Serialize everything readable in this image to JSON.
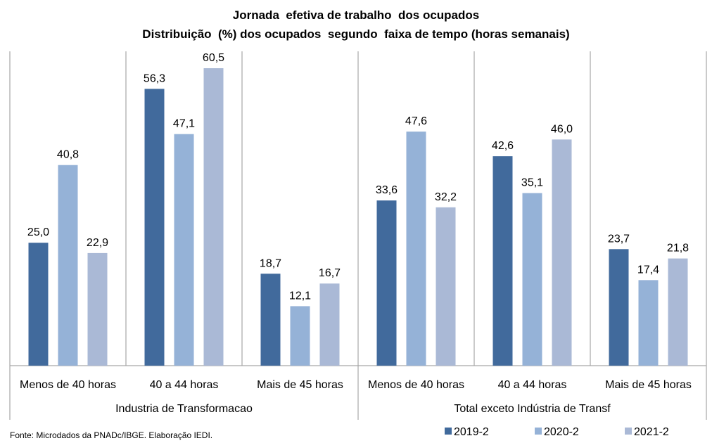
{
  "chart_data": {
    "type": "bar",
    "title": "Jornada  efetiva de trabalho  dos ocupados",
    "subtitle": "Distribuição  (%) dos ocupados  segundo  faixa de tempo (horas semanais)",
    "groups": [
      {
        "name": "Industria de Transformacao",
        "categories": [
          "Menos de 40 horas",
          "40 a 44 horas",
          "Mais de 45 horas"
        ]
      },
      {
        "name": "Total exceto Indústria de Transf",
        "categories": [
          "Menos de 40 horas",
          "40 a 44 horas",
          "Mais de 45 horas"
        ]
      }
    ],
    "categories": [
      "Menos de 40 horas",
      "40 a 44 horas",
      "Mais de 45 horas",
      "Menos de 40 horas",
      "40 a 44 horas",
      "Mais de 45 horas"
    ],
    "series": [
      {
        "name": "2019-2",
        "color": "#416A9C",
        "values": [
          25.0,
          56.3,
          18.7,
          33.6,
          42.6,
          23.7
        ],
        "labels": [
          "25,0",
          "56,3",
          "18,7",
          "33,6",
          "42,6",
          "23,7"
        ]
      },
      {
        "name": "2020-2",
        "color": "#95B2D7",
        "values": [
          40.8,
          47.1,
          12.1,
          47.6,
          35.1,
          17.4
        ],
        "labels": [
          "40,8",
          "47,1",
          "12,1",
          "47,6",
          "35,1",
          "17,4"
        ]
      },
      {
        "name": "2021-2",
        "color": "#AAB9D6",
        "values": [
          22.9,
          60.5,
          16.7,
          32.2,
          46.0,
          21.8
        ],
        "labels": [
          "22,9",
          "60,5",
          "16,7",
          "32,2",
          "46,0",
          "21,8"
        ]
      }
    ],
    "xlabel": "",
    "ylabel": "",
    "ylim": [
      0,
      60.5
    ],
    "grid": false,
    "legend_position": "bottom-right",
    "source": "Fonte: Microdados da PNADc/IBGE. Elaboração IEDI."
  }
}
